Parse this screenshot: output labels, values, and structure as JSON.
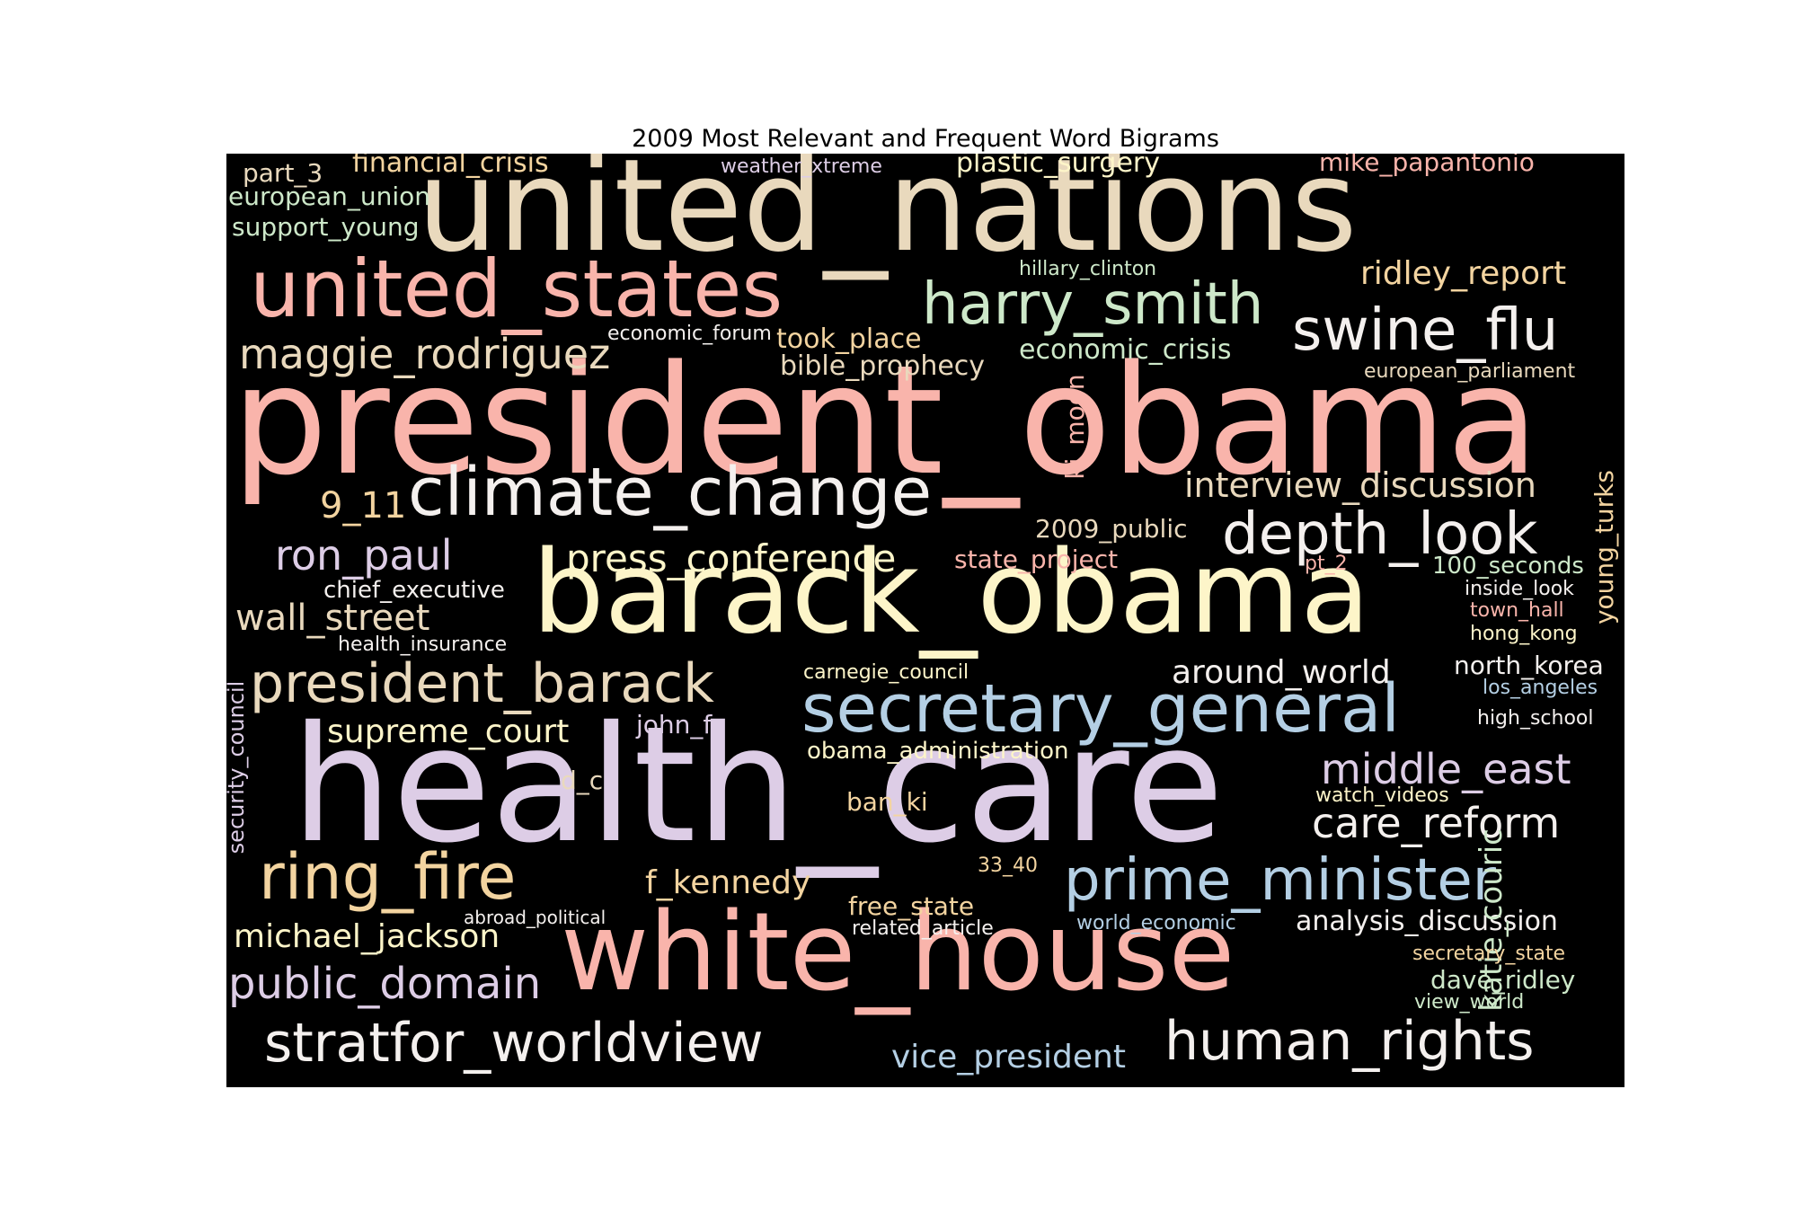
{
  "title": "2009 Most Relevant and Frequent Word Bigrams",
  "colors": {
    "peach": "#f9b4ab",
    "cream": "#e9d9bd",
    "yellow": "#fdf5c9",
    "lavender": "#ddcde6",
    "mint": "#cde8c9",
    "blue": "#b4cfe4",
    "white": "#f4f0ee",
    "tan": "#f3d4a0"
  },
  "words": {
    "united_nations": "united_nations",
    "president_obama": "president_obama",
    "health_care": "health_care",
    "barack_obama": "barack_obama",
    "white_house": "white_house",
    "united_states": "united_states",
    "secretary_general": "secretary_general",
    "climate_change": "climate_change",
    "harry_smith": "harry_smith",
    "prime_minister": "prime_minister",
    "swine_flu": "swine_flu",
    "depth_look": "depth_look",
    "president_barack": "president_barack",
    "ring_fire": "ring_fire",
    "stratfor_worldview": "stratfor_worldview",
    "human_rights": "human_rights",
    "maggie_rodriguez": "maggie_rodriguez",
    "public_domain": "public_domain",
    "middle_east": "middle_east",
    "care_reform": "care_reform",
    "press_conference": "press_conference",
    "ron_paul": "ron_paul",
    "vice_president": "vice_president",
    "wall_street": "wall_street",
    "interview_discussion": "interview_discussion",
    "around_world": "around_world",
    "supreme_court": "supreme_court",
    "michael_jackson": "michael_jackson",
    "ridley_report": "ridley_report",
    "9_11": "9_11",
    "f_kennedy": "f_kennedy",
    "katie_couric": "katie_couric",
    "analysis_discussion": "analysis_discussion",
    "economic_crisis": "economic_crisis",
    "bible_prophecy": "bible_prophecy",
    "took_place": "took_place",
    "financial_crisis": "financial_crisis",
    "plastic_surgery": "plastic_surgery",
    "mike_papantonio": "mike_papantonio",
    "european_union": "european_union",
    "support_young": "support_young",
    "part_3": "part_3",
    "dave_ridley": "dave_ridley",
    "2009_public": "2009_public",
    "state_project": "state_project",
    "chief_executive": "chief_executive",
    "obama_administration": "obama_administration",
    "north_korea": "north_korea",
    "john_f": "john_f",
    "free_state": "free_state",
    "ban_ki": "ban_ki",
    "100_seconds": "100_seconds",
    "young_turks": "young_turks",
    "ki_moon": "ki_moon",
    "security_council": "security_council",
    "d_c": "d_c",
    "weather_xtreme": "weather_xtreme",
    "hillary_clinton": "hillary_clinton",
    "economic_forum": "economic_forum",
    "european_parliament": "european_parliament",
    "health_insurance": "health_insurance",
    "carnegie_council": "carnegie_council",
    "inside_look": "inside_look",
    "town_hall": "town_hall",
    "hong_kong": "hong_kong",
    "los_angeles": "los_angeles",
    "high_school": "high_school",
    "watch_videos": "watch_videos",
    "33_40": "33_40",
    "abroad_political": "abroad_political",
    "related_article": "related_article",
    "world_economic": "world_economic",
    "secretary_state": "secretary_state",
    "view_world": "view_world",
    "pt_2": "pt_2"
  }
}
